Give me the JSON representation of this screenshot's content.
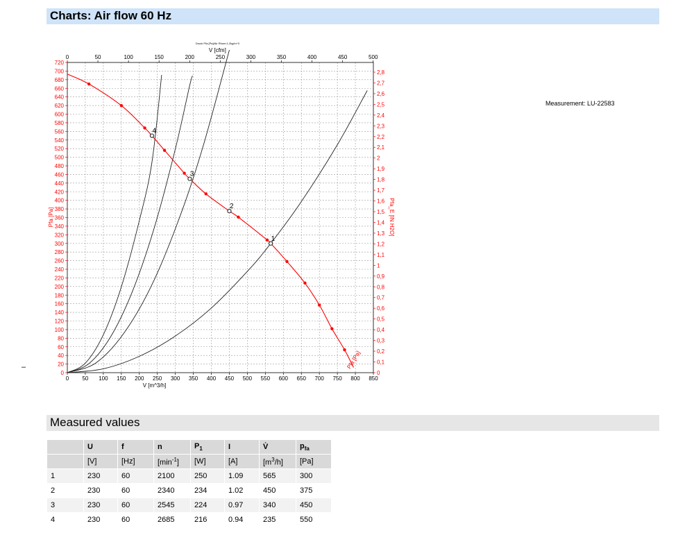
{
  "header": {
    "title": "Charts: Air flow 60 Hz"
  },
  "measurement": "Measurement: LU-22583",
  "dash": "–",
  "chart_data": {
    "type": "line",
    "title": "Druck Pfa [Pa]/Air Rhom:1,2kg/m^3",
    "xlabel": "V [m^3/h]",
    "x2label": "V [cfm]",
    "ylabel": "Pfa [Pa]",
    "y2label": "Pfa_E [IN H2O]",
    "xlim": [
      0,
      850
    ],
    "ylim": [
      0,
      720
    ],
    "x_ticks": [
      0,
      50,
      100,
      150,
      200,
      250,
      300,
      350,
      400,
      450,
      500,
      550,
      600,
      650,
      700,
      750,
      800,
      850
    ],
    "x_tick_labels": [
      "0",
      "50",
      "100",
      "150",
      "200",
      "250",
      "300",
      "350",
      "400",
      "450",
      "500",
      "550",
      "600",
      "650",
      "700",
      "750",
      "800",
      "850"
    ],
    "y_ticks": [
      0,
      20,
      40,
      60,
      80,
      100,
      120,
      140,
      160,
      180,
      200,
      220,
      240,
      260,
      280,
      300,
      320,
      340,
      360,
      380,
      400,
      420,
      440,
      460,
      480,
      500,
      520,
      540,
      560,
      580,
      600,
      620,
      640,
      660,
      680,
      700,
      720
    ],
    "y_tick_labels": [
      "0",
      "20",
      "40",
      "60",
      "80",
      "100",
      "120",
      "140",
      "160",
      "180",
      "200",
      "220",
      "240",
      "260",
      "280",
      "300",
      "320",
      "340",
      "360",
      "380",
      "400",
      "420",
      "440",
      "460",
      "480",
      "500",
      "520",
      "540",
      "560",
      "580",
      "600",
      "620",
      "640",
      "660",
      "680",
      "700",
      "720"
    ],
    "x2_ticks": [
      0,
      50,
      100,
      150,
      200,
      250,
      300,
      350,
      400,
      450,
      500
    ],
    "x2_tick_labels": [
      "0",
      "50",
      "100",
      "150",
      "200",
      "250",
      "300",
      "350",
      "400",
      "450",
      "500"
    ],
    "y2_ticks": [
      0,
      0.1,
      0.2,
      0.3,
      0.4,
      0.5,
      0.6,
      0.7,
      0.8,
      0.9,
      1,
      1.1,
      1.2,
      1.3,
      1.4,
      1.5,
      1.6,
      1.7,
      1.8,
      1.9,
      2,
      2.1,
      2.2,
      2.3,
      2.4,
      2.5,
      2.6,
      2.7,
      2.8
    ],
    "y2_tick_labels": [
      "0",
      "0,1",
      "0,2",
      "0,3",
      "0,4",
      "0,5",
      "0,6",
      "0,7",
      "0,8",
      "0,9",
      "1",
      "1,1",
      "1,2",
      "1,3",
      "1,4",
      "1,5",
      "1,6",
      "1,7",
      "1,8",
      "1,9",
      "2",
      "2,1",
      "2,2",
      "2,3",
      "2,4",
      "2,5",
      "2,6",
      "2,7",
      "2,8"
    ],
    "grid": true,
    "series": [
      {
        "name": "Pfa [Pa]",
        "color": "#ff0000",
        "markers": [
          [
            60,
            670
          ],
          [
            150,
            620
          ],
          [
            215,
            568
          ],
          [
            270,
            516
          ],
          [
            325,
            463
          ],
          [
            385,
            415
          ],
          [
            475,
            361
          ],
          [
            555,
            308
          ],
          [
            610,
            258
          ],
          [
            660,
            208
          ],
          [
            700,
            157
          ],
          [
            735,
            102
          ],
          [
            770,
            53
          ]
        ],
        "curve": [
          [
            0,
            693
          ],
          [
            60,
            670
          ],
          [
            150,
            620
          ],
          [
            215,
            568
          ],
          [
            235,
            550
          ],
          [
            270,
            516
          ],
          [
            325,
            463
          ],
          [
            340,
            450
          ],
          [
            385,
            415
          ],
          [
            450,
            375
          ],
          [
            475,
            361
          ],
          [
            555,
            308
          ],
          [
            565,
            300
          ],
          [
            610,
            258
          ],
          [
            660,
            208
          ],
          [
            700,
            157
          ],
          [
            735,
            102
          ],
          [
            770,
            53
          ],
          [
            795,
            12
          ]
        ]
      }
    ],
    "system_curves": [
      {
        "points": [
          [
            0,
            0
          ],
          [
            50,
            22
          ],
          [
            100,
            88
          ],
          [
            150,
            199
          ],
          [
            200,
            353
          ],
          [
            235,
            488
          ],
          [
            262,
            691
          ]
        ]
      },
      {
        "points": [
          [
            0,
            0
          ],
          [
            60,
            21
          ],
          [
            120,
            83
          ],
          [
            180,
            187
          ],
          [
            240,
            332
          ],
          [
            300,
            519
          ],
          [
            340,
            667
          ],
          [
            348,
            689
          ]
        ]
      },
      {
        "points": [
          [
            0,
            0
          ],
          [
            80,
            23
          ],
          [
            160,
            95
          ],
          [
            240,
            213
          ],
          [
            320,
            379
          ],
          [
            380,
            534
          ],
          [
            450,
            749
          ]
        ]
      },
      {
        "points": [
          [
            0,
            0
          ],
          [
            100,
            9
          ],
          [
            200,
            38
          ],
          [
            300,
            85
          ],
          [
            400,
            150
          ],
          [
            500,
            235
          ],
          [
            565,
            300
          ],
          [
            650,
            397
          ],
          [
            750,
            529
          ],
          [
            833,
            655
          ]
        ]
      }
    ],
    "operating_points": [
      {
        "label": "1",
        "x": 565,
        "y": 300
      },
      {
        "label": "2",
        "x": 450,
        "y": 375
      },
      {
        "label": "3",
        "x": 340,
        "y": 450
      },
      {
        "label": "4",
        "x": 235,
        "y": 550
      }
    ],
    "curve_end_label": "Pfa [Pa]"
  },
  "measured": {
    "title": "Measured values",
    "headers": [
      "",
      "U",
      "f",
      "n",
      "P",
      "I",
      "V̇",
      "p"
    ],
    "header_subs": [
      "",
      "",
      "",
      "",
      "1",
      "",
      "",
      "fa"
    ],
    "units": [
      "",
      "[V]",
      "[Hz]",
      "[min",
      "[W]",
      "[A]",
      "[m",
      "[Pa]"
    ],
    "unit_sups": [
      "",
      "",
      "",
      "-1",
      "",
      "",
      "3",
      ""
    ],
    "unit_tails": [
      "",
      "",
      "",
      "]",
      "",
      "",
      "/h]",
      ""
    ],
    "rows": [
      [
        "1",
        "230",
        "60",
        "2100",
        "250",
        "1.09",
        "565",
        "300"
      ],
      [
        "2",
        "230",
        "60",
        "2340",
        "234",
        "1.02",
        "450",
        "375"
      ],
      [
        "3",
        "230",
        "60",
        "2545",
        "224",
        "0.97",
        "340",
        "450"
      ],
      [
        "4",
        "230",
        "60",
        "2685",
        "216",
        "0.94",
        "235",
        "550"
      ]
    ]
  }
}
